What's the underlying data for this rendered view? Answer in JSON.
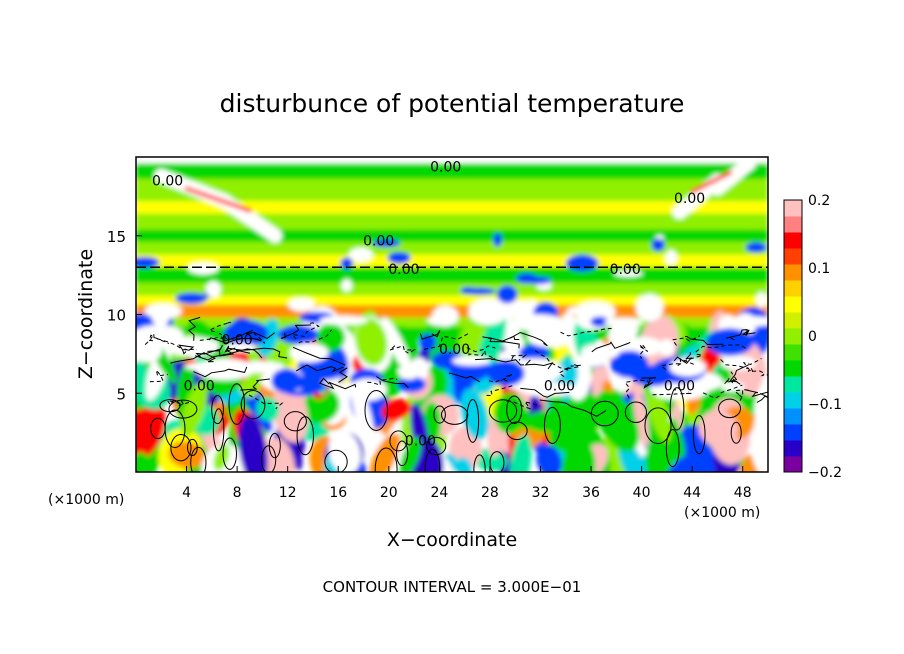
{
  "chart_data": {
    "type": "heatmap",
    "title": "disturbunce of potential temperature",
    "xlabel": "X−coordinate",
    "ylabel": "Z−coordinate",
    "x_unit": "(×1000 m)",
    "x_unit_right": "(×1000 m)",
    "footer": "CONTOUR INTERVAL = 3.000E−01",
    "xlim": [
      0,
      50
    ],
    "ylim": [
      0,
      20
    ],
    "x_ticks": [
      4,
      8,
      12,
      16,
      20,
      24,
      28,
      32,
      36,
      40,
      44,
      48
    ],
    "y_ticks": [
      5,
      10,
      15
    ],
    "colorbar": {
      "min": -0.2,
      "max": 0.2,
      "ticks": [
        {
          "value": 0.2,
          "label": "0.2"
        },
        {
          "value": 0.1,
          "label": "0.1"
        },
        {
          "value": 0,
          "label": "0"
        },
        {
          "value": -0.1,
          "label": "−0.1"
        },
        {
          "value": -0.2,
          "label": "−0.2"
        }
      ],
      "colors": [
        "#7a00a0",
        "#2a00c8",
        "#0040ff",
        "#0090ff",
        "#00d0e8",
        "#00e8a0",
        "#00d800",
        "#40e000",
        "#90f000",
        "#d0f000",
        "#ffff00",
        "#ffd000",
        "#ff9000",
        "#ff4000",
        "#ff0000",
        "#ff8080",
        "#ffc0c0"
      ]
    },
    "contour_labels": [
      {
        "text": "0.00",
        "x": 24.5,
        "y": 19.4
      },
      {
        "text": "0.00",
        "x": 2.5,
        "y": 18.5
      },
      {
        "text": "0.00",
        "x": 43.8,
        "y": 17.4
      },
      {
        "text": "0.00",
        "x": 19.2,
        "y": 14.7
      },
      {
        "text": "0.00",
        "x": 21.2,
        "y": 12.9
      },
      {
        "text": "0.00",
        "x": 38.7,
        "y": 12.9
      },
      {
        "text": "0.00",
        "x": 8.0,
        "y": 8.4
      },
      {
        "text": "0.00",
        "x": 25.2,
        "y": 7.8
      },
      {
        "text": "0.00",
        "x": 5.0,
        "y": 5.5
      },
      {
        "text": "0.00",
        "x": 22.5,
        "y": 2.0
      },
      {
        "text": "0.00",
        "x": 33.5,
        "y": 5.5
      },
      {
        "text": "0.00",
        "x": 43.0,
        "y": 5.5
      }
    ]
  }
}
